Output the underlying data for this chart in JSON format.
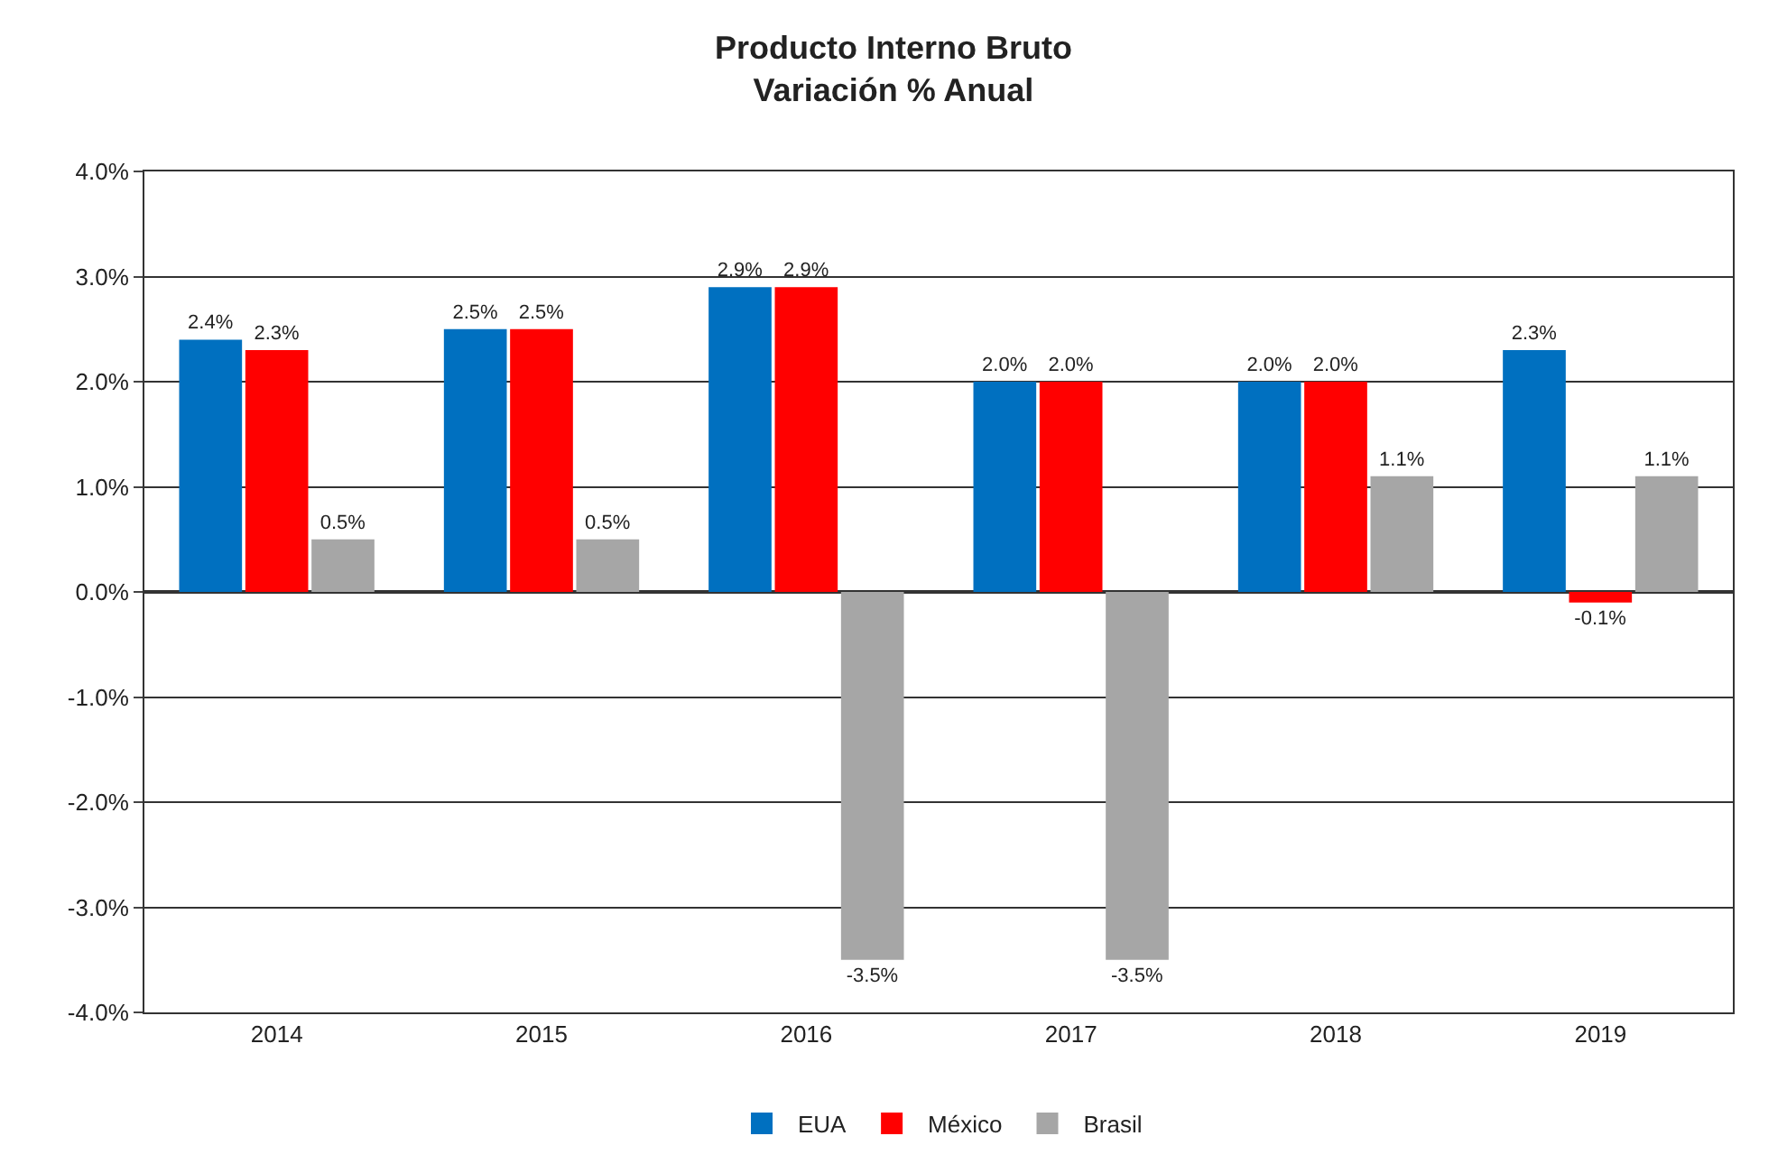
{
  "chart_data": {
    "type": "bar",
    "title": "Producto Interno Bruto",
    "subtitle": "Variación % Anual",
    "categories": [
      "2014",
      "2015",
      "2016",
      "2017",
      "2018",
      "2019"
    ],
    "series": [
      {
        "name": "EUA",
        "color": "#0070c0",
        "values": [
          2.4,
          2.5,
          2.9,
          2.0,
          2.0,
          2.3
        ],
        "value_labels": [
          "2.4%",
          "2.5%",
          "2.9%",
          "2.0%",
          "2.0%",
          "2.3%"
        ]
      },
      {
        "name": "México",
        "color": "#ff0000",
        "values": [
          2.3,
          2.5,
          2.9,
          2.0,
          2.0,
          -0.1
        ],
        "value_labels": [
          "2.3%",
          "2.5%",
          "2.9%",
          "2.0%",
          "2.0%",
          "-0.1%"
        ]
      },
      {
        "name": "Brasil",
        "color": "#a6a6a6",
        "values": [
          0.5,
          0.5,
          -3.5,
          -3.5,
          1.1,
          1.1
        ],
        "value_labels": [
          "0.5%",
          "0.5%",
          "-3.5%",
          "-3.5%",
          "1.1%",
          "1.1%"
        ]
      }
    ],
    "ylim": [
      -4,
      4
    ],
    "yticks": [
      {
        "value": -4,
        "label": "-4.0%"
      },
      {
        "value": -3,
        "label": "-3.0%"
      },
      {
        "value": -2,
        "label": "-2.0%"
      },
      {
        "value": -1,
        "label": "-1.0%"
      },
      {
        "value": 0,
        "label": "0.0%"
      },
      {
        "value": 1,
        "label": "1.0%"
      },
      {
        "value": 2,
        "label": "2.0%"
      },
      {
        "value": 3,
        "label": "3.0%"
      },
      {
        "value": 4,
        "label": "4.0%"
      }
    ],
    "grid": "y",
    "legend": "bottom"
  }
}
